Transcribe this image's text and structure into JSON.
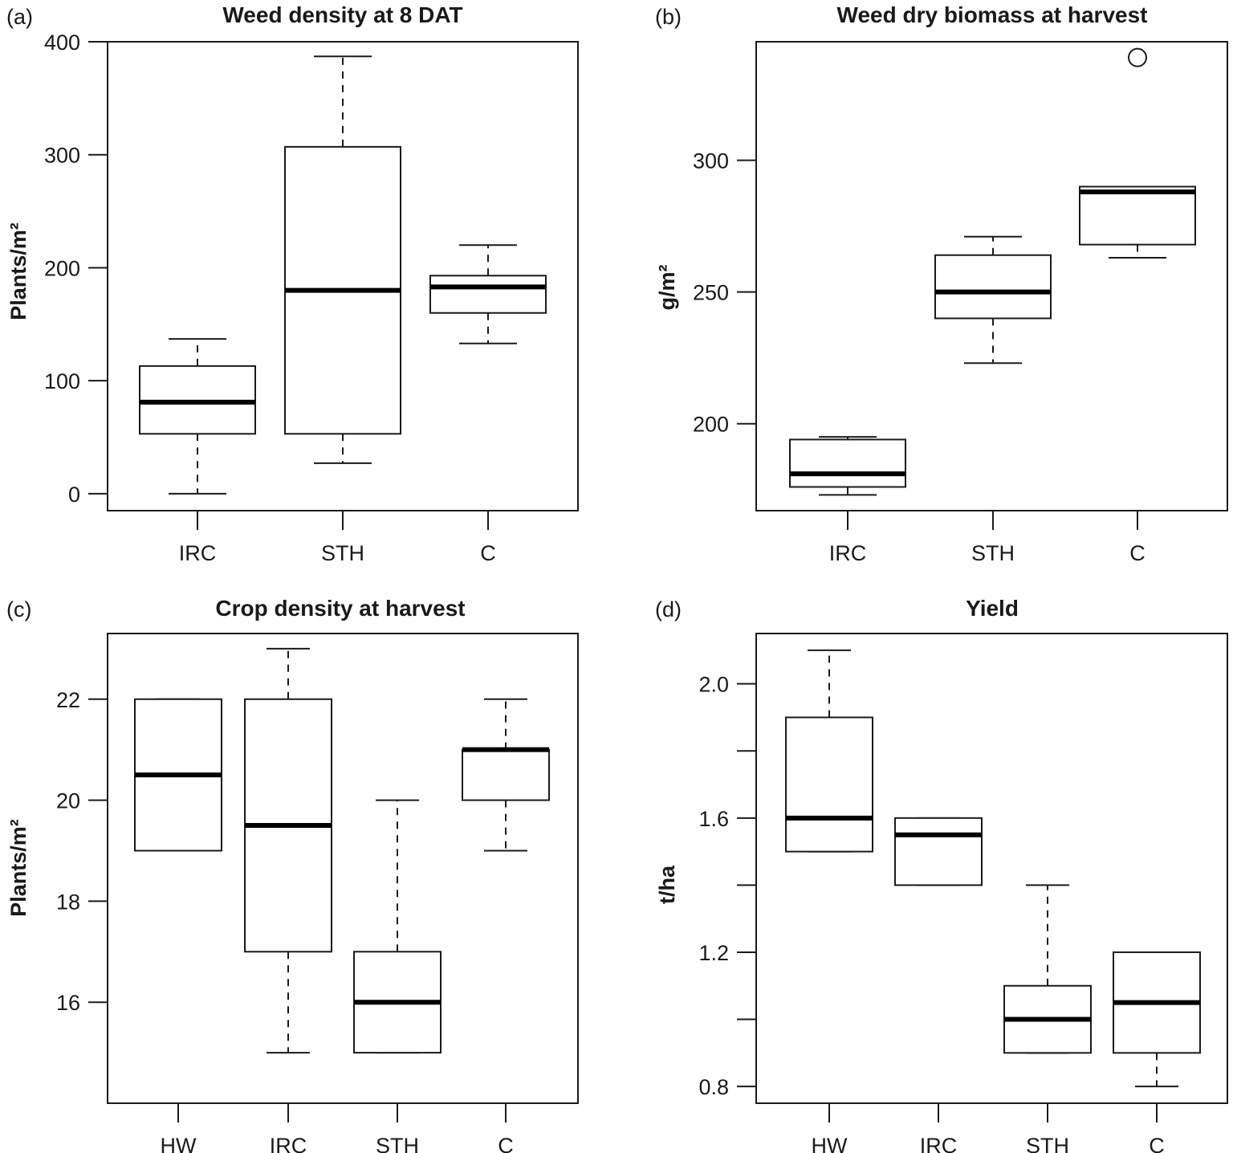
{
  "chart_data": [
    {
      "type": "box",
      "panel": "(a)",
      "title": "Weed density at 8 DAT",
      "ylabel": "Plants/m²",
      "xlabel": "",
      "ylim": [
        -15,
        400
      ],
      "yticks": [
        0,
        100,
        200,
        300,
        400
      ],
      "categories": [
        "IRC",
        "STH",
        "C"
      ],
      "boxes": [
        {
          "min": 0,
          "q1": 53,
          "median": 81,
          "q3": 113,
          "max": 137
        },
        {
          "min": 27,
          "q1": 53,
          "median": 180,
          "q3": 307,
          "max": 387
        },
        {
          "min": 133,
          "q1": 160,
          "median": 183,
          "q3": 193,
          "max": 220
        }
      ],
      "outliers": []
    },
    {
      "type": "box",
      "panel": "(b)",
      "title": "Weed dry biomass at harvest",
      "ylabel": "g/m²",
      "xlabel": "",
      "ylim": [
        167,
        345
      ],
      "yticks": [
        200,
        250,
        300
      ],
      "categories": [
        "IRC",
        "STH",
        "C"
      ],
      "boxes": [
        {
          "min": 173,
          "q1": 176,
          "median": 181,
          "q3": 194,
          "max": 195
        },
        {
          "min": 223,
          "q1": 240,
          "median": 250,
          "q3": 264,
          "max": 271
        },
        {
          "min": 263,
          "q1": 268,
          "median": 288,
          "q3": 290,
          "max": 290
        }
      ],
      "outliers": [
        {
          "category": "C",
          "value": 339
        }
      ]
    },
    {
      "type": "box",
      "panel": "(c)",
      "title": "Crop density at harvest",
      "ylabel": "Plants/m²",
      "xlabel": "",
      "ylim": [
        14.0,
        23.3
      ],
      "yticks": [
        16,
        18,
        20,
        22
      ],
      "categories": [
        "HW",
        "IRC",
        "STH",
        "C"
      ],
      "boxes": [
        {
          "min": 19,
          "q1": 19,
          "median": 20.5,
          "q3": 22,
          "max": 22
        },
        {
          "min": 15,
          "q1": 17,
          "median": 19.5,
          "q3": 22,
          "max": 23
        },
        {
          "min": 15,
          "q1": 15,
          "median": 16,
          "q3": 17,
          "max": 20
        },
        {
          "min": 19,
          "q1": 20,
          "median": 21,
          "q3": 21,
          "max": 22
        }
      ],
      "outliers": []
    },
    {
      "type": "box",
      "panel": "(d)",
      "title": "Yield",
      "ylabel": "t/ha",
      "xlabel": "",
      "ylim": [
        0.75,
        2.15
      ],
      "yticks": [
        0.8,
        1.0,
        1.2,
        1.4,
        1.6,
        1.8,
        2.0
      ],
      "ytick_labels": [
        "0.8",
        "",
        "1.2",
        "",
        "1.6",
        "",
        "2.0"
      ],
      "categories": [
        "HW",
        "IRC",
        "STH",
        "C"
      ],
      "boxes": [
        {
          "min": 1.5,
          "q1": 1.5,
          "median": 1.6,
          "q3": 1.9,
          "max": 2.1
        },
        {
          "min": 1.4,
          "q1": 1.4,
          "median": 1.55,
          "q3": 1.6,
          "max": 1.6
        },
        {
          "min": 0.9,
          "q1": 0.9,
          "median": 1.0,
          "q3": 1.1,
          "max": 1.4
        },
        {
          "min": 0.8,
          "q1": 0.9,
          "median": 1.05,
          "q3": 1.2,
          "max": 1.2
        }
      ],
      "outliers": []
    }
  ]
}
